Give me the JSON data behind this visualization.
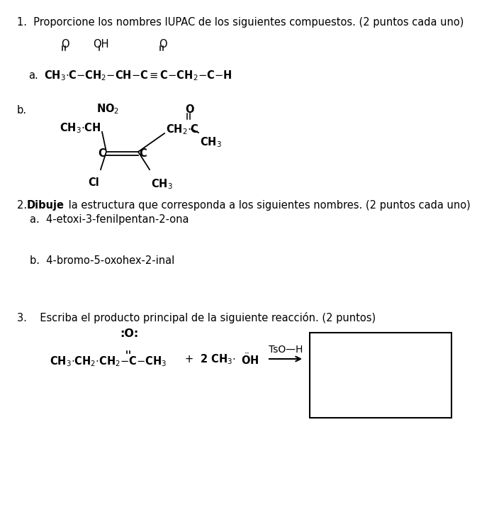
{
  "bg_color": "#ffffff",
  "title1": "1.  Proporcione los nombres IUPAC de los siguientes compuestos. (2 puntos cada uno)",
  "title2_rest": " la estructura que corresponda a los siguientes nombres. (2 puntos cada uno)",
  "title3": "3.    Escriba el producto principal de la siguiente reacción. (2 puntos)",
  "section2a": "a.  4-etoxi-3-fenilpentan-2-ona",
  "section2b": "b.  4-bromo-5-oxohex-2-inal",
  "fs": 10.5
}
